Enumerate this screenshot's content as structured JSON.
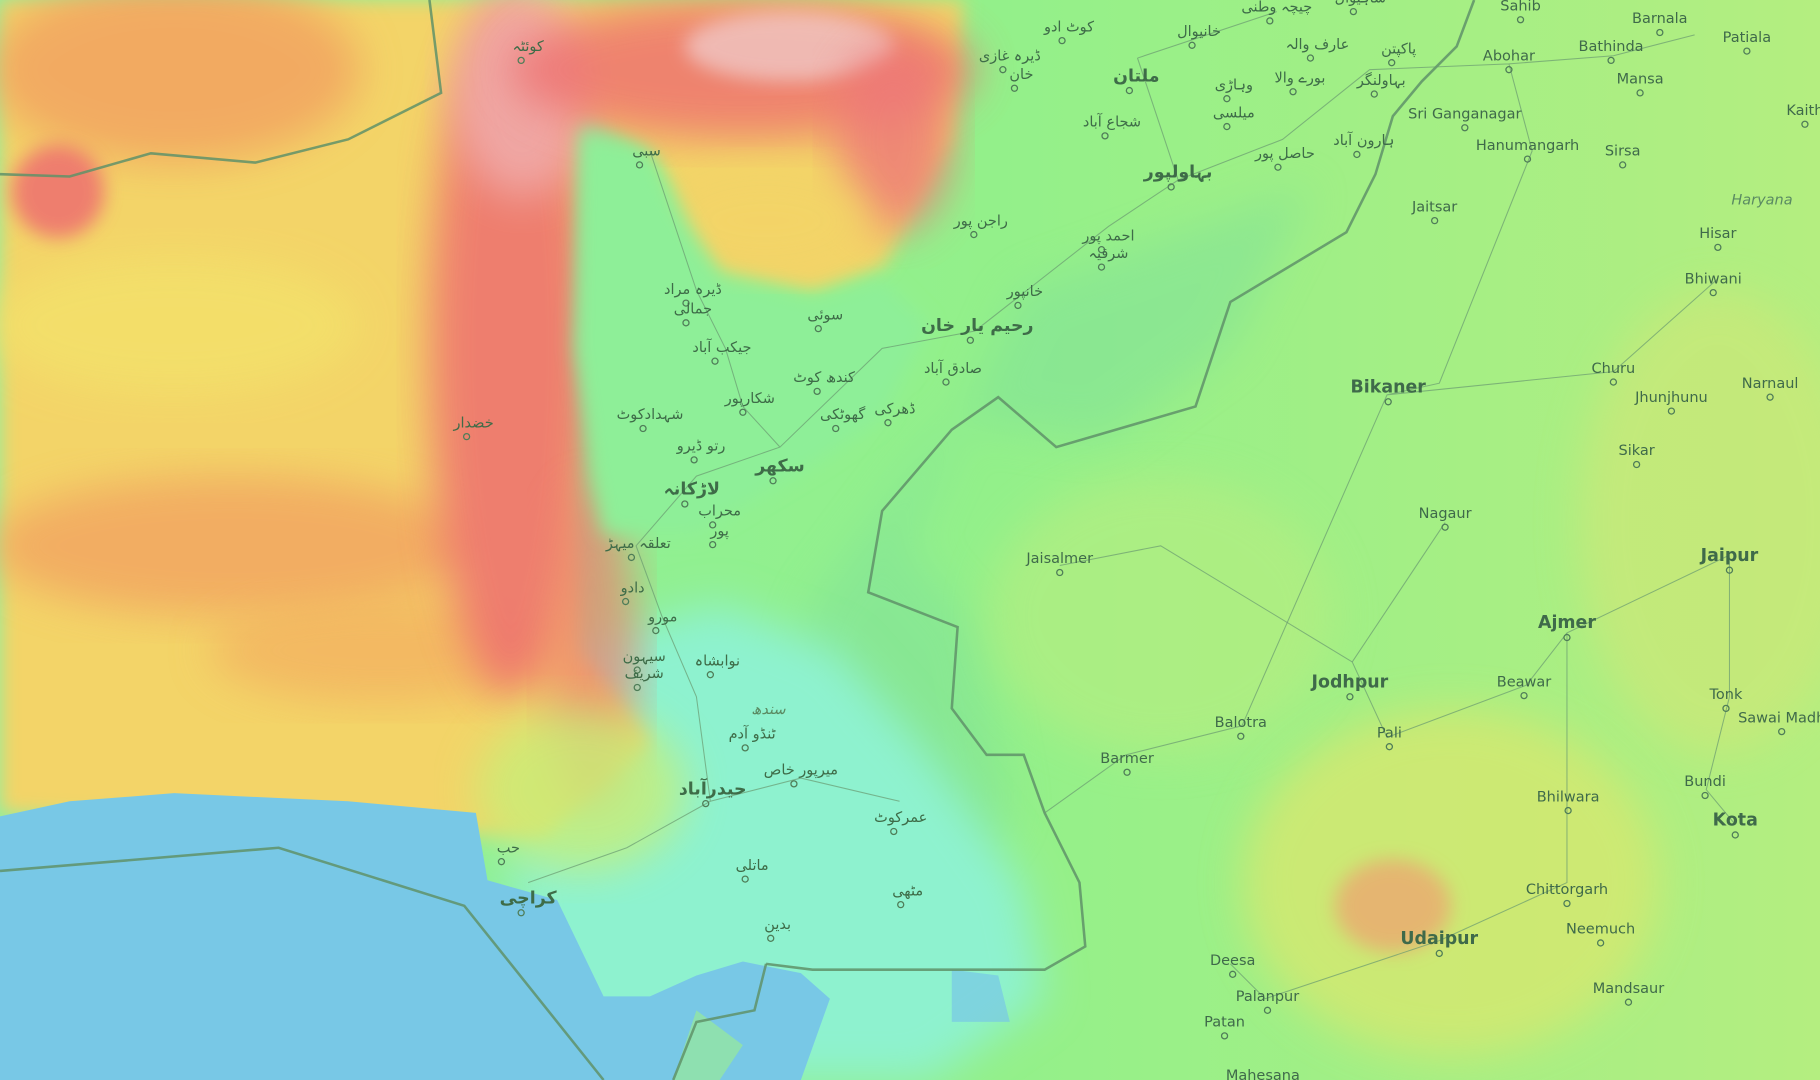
{
  "map": {
    "type": "topographic",
    "colors": {
      "lowland": "#93f08c",
      "coast": "#8ef2cf",
      "sea": "#78c8e6",
      "highland": "#f2a060",
      "peak": "#ee6e6e",
      "plateau": "#f3e06a"
    },
    "places": [
      {
        "name": "Sahib"
      },
      {
        "name": "Barnala"
      },
      {
        "name": "Patiala"
      },
      {
        "name": "Abohar"
      },
      {
        "name": "Bathinda"
      },
      {
        "name": "Mansa"
      },
      {
        "name": "Kaith"
      },
      {
        "name": "Sri Ganganagar"
      },
      {
        "name": "Hanumangarh"
      },
      {
        "name": "Sirsa"
      },
      {
        "name": "Jaitsar"
      },
      {
        "name": "Haryana"
      },
      {
        "name": "Hisar"
      },
      {
        "name": "Bhiwani"
      },
      {
        "name": "Bikaner"
      },
      {
        "name": "Churu"
      },
      {
        "name": "Jhunjhunu"
      },
      {
        "name": "Narnaul"
      },
      {
        "name": "Sikar"
      },
      {
        "name": "Nagaur"
      },
      {
        "name": "Jaisalmer"
      },
      {
        "name": "Jaipur"
      },
      {
        "name": "Ajmer"
      },
      {
        "name": "Jodhpur"
      },
      {
        "name": "Beawar"
      },
      {
        "name": "Tonk"
      },
      {
        "name": "Sawai Madh"
      },
      {
        "name": "Balotra"
      },
      {
        "name": "Pali"
      },
      {
        "name": "Barmer"
      },
      {
        "name": "Bhilwara"
      },
      {
        "name": "Bundi"
      },
      {
        "name": "Kota"
      },
      {
        "name": "Chittorgarh"
      },
      {
        "name": "Udaipur"
      },
      {
        "name": "Neemuch"
      },
      {
        "name": "Mandsaur"
      },
      {
        "name": "Deesa"
      },
      {
        "name": "Palanpur"
      },
      {
        "name": "Patan"
      },
      {
        "name": "Mahesana"
      },
      {
        "name": "کوئٹہ"
      },
      {
        "name": "سبی"
      },
      {
        "name": "خضدار"
      },
      {
        "name": "ڈیرہ مراد"
      },
      {
        "name": "جمالی"
      },
      {
        "name": "سوئی"
      },
      {
        "name": "جیکب آباد"
      },
      {
        "name": "کندھ کوٹ"
      },
      {
        "name": "شکارپور"
      },
      {
        "name": "شہدادکوٹ"
      },
      {
        "name": "رتو ڈیرو"
      },
      {
        "name": "سکھر"
      },
      {
        "name": "لاڑکانہ"
      },
      {
        "name": "محراب"
      },
      {
        "name": "پور"
      },
      {
        "name": "تعلقہ میہڑ"
      },
      {
        "name": "دادو"
      },
      {
        "name": "مورو"
      },
      {
        "name": "سیہون"
      },
      {
        "name": "شریف"
      },
      {
        "name": "نوابشاہ"
      },
      {
        "name": "سندھ"
      },
      {
        "name": "ٹنڈو آدم"
      },
      {
        "name": "میرپور خاص"
      },
      {
        "name": "حیدرآباد"
      },
      {
        "name": "عمرکوٹ"
      },
      {
        "name": "ماتلی"
      },
      {
        "name": "مٹھی"
      },
      {
        "name": "بدین"
      },
      {
        "name": "حب"
      },
      {
        "name": "کراچی"
      },
      {
        "name": "گھوٹکی"
      },
      {
        "name": "ڈھرکی"
      },
      {
        "name": "صادق آباد"
      },
      {
        "name": "رحیم یار خان"
      },
      {
        "name": "خانپور"
      },
      {
        "name": "احمد پور"
      },
      {
        "name": "شرقیہ"
      },
      {
        "name": "راجن پور"
      },
      {
        "name": "بہاولپور"
      },
      {
        "name": "شجاع آباد"
      },
      {
        "name": "ملتان"
      },
      {
        "name": "ڈیرہ غازی"
      },
      {
        "name": "خان"
      },
      {
        "name": "کوٹ ادو"
      },
      {
        "name": "خانیوال"
      },
      {
        "name": "چیچہ وطنی"
      },
      {
        "name": "عارف والہ"
      },
      {
        "name": "پاکپتن"
      },
      {
        "name": "وہاڑی"
      },
      {
        "name": "بورے والا"
      },
      {
        "name": "بہاولنگر"
      },
      {
        "name": "میلسی"
      },
      {
        "name": "حاصل پور"
      },
      {
        "name": "ہارون آباد"
      },
      {
        "name": "ساہیوال"
      }
    ]
  }
}
